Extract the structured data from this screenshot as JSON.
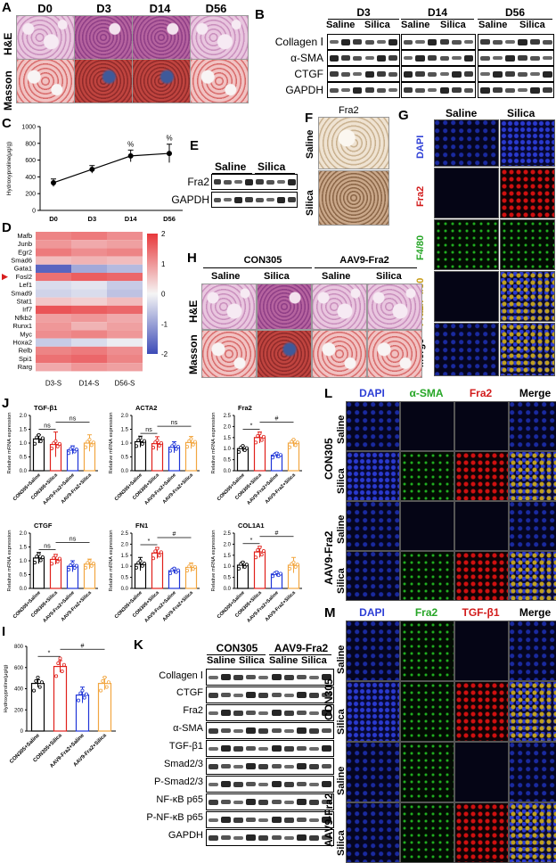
{
  "panels": {
    "A": {
      "label": "A",
      "timepoints": [
        "D0",
        "D3",
        "D14",
        "D56"
      ],
      "rows": [
        "H&E",
        "Masson"
      ]
    },
    "B": {
      "label": "B",
      "groups": [
        "D3",
        "D14",
        "D56"
      ],
      "subgroups": [
        "Saline",
        "Silica"
      ],
      "rows": [
        "Collagen Ⅰ",
        "α-SMA",
        "CTGF",
        "GAPDH"
      ]
    },
    "C": {
      "label": "C"
    },
    "D": {
      "label": "D"
    },
    "E": {
      "label": "E",
      "groups": [
        "Saline",
        "Silica"
      ],
      "rows": [
        "Fra2",
        "GAPDH"
      ]
    },
    "F": {
      "label": "F",
      "title": "Fra2",
      "rows": [
        "Saline",
        "Silica"
      ]
    },
    "G": {
      "label": "G",
      "cols": [
        "Saline",
        "Silica"
      ],
      "rows": [
        "DAPI",
        "Fra2",
        "F4/80",
        "Fra2/F4/80",
        "Merge"
      ]
    },
    "H": {
      "label": "H",
      "groups": [
        "CON305",
        "AAV9-Fra2"
      ],
      "cols": [
        "Saline",
        "Silica",
        "Saline",
        "Silica"
      ],
      "rows": [
        "H&E",
        "Masson"
      ]
    },
    "I": {
      "label": "I"
    },
    "J": {
      "label": "J"
    },
    "K": {
      "label": "K",
      "groups": [
        "CON305",
        "AAV9-Fra2"
      ],
      "cols": [
        "Saline",
        "Silica",
        "Saline",
        "Silica"
      ],
      "rows": [
        "Collagen Ⅰ",
        "CTGF",
        "Fra2",
        "α-SMA",
        "TGF-β1",
        "Smad2/3",
        "P-Smad2/3",
        "NF-κB p65",
        "P-NF-κB p65",
        "GAPDH"
      ]
    },
    "L": {
      "label": "L",
      "cols": [
        "DAPI",
        "α-SMA",
        "Fra2",
        "Merge"
      ],
      "groups": [
        "CON305",
        "AAV9-Fra2"
      ],
      "rows": [
        "Saline",
        "Silica",
        "Saline",
        "Silica"
      ]
    },
    "M": {
      "label": "M",
      "cols": [
        "DAPI",
        "Fra2",
        "TGF-β1",
        "Merge"
      ],
      "groups": [
        "CON305",
        "AAV9-Fra2"
      ],
      "rows": [
        "Saline",
        "Silica",
        "Saline",
        "Silica"
      ]
    }
  },
  "chart_data": [
    {
      "id": "C",
      "type": "line",
      "ylabel": "Hydroxyproline(μg/g)",
      "categories": [
        "D0",
        "D3",
        "D14",
        "D56"
      ],
      "values": [
        330,
        490,
        650,
        680
      ],
      "errors": [
        45,
        45,
        70,
        110
      ],
      "ylim": [
        0,
        1000
      ],
      "yticks": [
        0,
        200,
        400,
        600,
        800,
        1000
      ],
      "annotations": [
        "%",
        "%"
      ]
    },
    {
      "id": "D",
      "type": "heatmap",
      "columns": [
        "D3-S",
        "D14-S",
        "D56-S"
      ],
      "rows": [
        "Mafb",
        "Junb",
        "Egr2",
        "Smad6",
        "Gata1",
        "Fosl2",
        "Lef1",
        "Smad9",
        "Stat1",
        "Irf7",
        "Nfkb2",
        "Runx1",
        "Myc",
        "Hoxa2",
        "Relb",
        "Spi1",
        "Rarg"
      ],
      "highlight": "Fosl2",
      "values": [
        [
          1.2,
          1.3,
          1.1
        ],
        [
          1.0,
          0.8,
          0.9
        ],
        [
          1.3,
          1.1,
          1.2
        ],
        [
          0.6,
          0.7,
          0.6
        ],
        [
          -1.7,
          -0.9,
          -0.7
        ],
        [
          1.4,
          1.6,
          1.5
        ],
        [
          -0.3,
          -0.2,
          -0.5
        ],
        [
          -0.4,
          -0.3,
          -0.6
        ],
        [
          0.5,
          0.4,
          0.6
        ],
        [
          1.7,
          1.6,
          1.5
        ],
        [
          0.9,
          1.0,
          0.8
        ],
        [
          1.0,
          0.7,
          0.9
        ],
        [
          1.1,
          1.2,
          1.0
        ],
        [
          -0.5,
          -0.3,
          -0.1
        ],
        [
          1.2,
          1.3,
          1.1
        ],
        [
          1.4,
          1.5,
          1.2
        ],
        [
          0.8,
          1.0,
          0.9
        ]
      ],
      "scale": [
        -2,
        2
      ],
      "scale_ticks": [
        "2",
        "1",
        "0",
        "-1",
        "-2"
      ]
    },
    {
      "id": "I",
      "type": "bar",
      "ylabel": "Hydroxyproline(μg/g)",
      "categories": [
        "CON305+Saline",
        "CON305+Silica",
        "AAV9-Fra2+Saline",
        "AAV9-Fra2+Silica"
      ],
      "values": [
        450,
        610,
        340,
        450
      ],
      "errors": [
        35,
        55,
        75,
        60
      ],
      "ylim": [
        0,
        800
      ],
      "yticks": [
        0,
        200,
        400,
        600,
        800
      ],
      "sig": [
        "*",
        "#"
      ]
    },
    {
      "id": "J-TGFb1",
      "type": "bar",
      "title": "TGF-β1",
      "ylabel": "Relative mRNA expression",
      "categories": [
        "CON305+Saline",
        "CON305+Silica",
        "AAV9-Fra2+Saline",
        "AAV9-Fra2+Silica"
      ],
      "values": [
        1.15,
        0.95,
        0.75,
        1.0
      ],
      "errors": [
        0.15,
        0.45,
        0.15,
        0.3
      ],
      "ylim": [
        0,
        2.0
      ],
      "yticks": [
        "0.0",
        "0.5",
        "1.0",
        "1.5",
        "2.0"
      ],
      "sig": [
        "ns",
        "ns"
      ]
    },
    {
      "id": "J-ACTA2",
      "type": "bar",
      "title": "ACTA2",
      "ylabel": "Relative mRNA expression",
      "categories": [
        "CON305+Saline",
        "CON305+Silica",
        "AAV9-Fra2+Saline",
        "AAV9-Fra2+Silica"
      ],
      "values": [
        1.05,
        0.98,
        0.85,
        1.02
      ],
      "errors": [
        0.2,
        0.25,
        0.2,
        0.22
      ],
      "ylim": [
        0,
        2.0
      ],
      "yticks": [
        "0.0",
        "0.5",
        "1.0",
        "1.5",
        "2.0"
      ],
      "sig": [
        "ns",
        "ns"
      ]
    },
    {
      "id": "J-Fra2",
      "type": "bar",
      "title": "Fra2",
      "ylabel": "Relative mRNA expression",
      "categories": [
        "CON305+Saline",
        "CON305+Silica",
        "AAV9-Fra2+Saline",
        "AAV9-Fra2+Silica"
      ],
      "values": [
        1.0,
        1.5,
        0.7,
        1.25
      ],
      "errors": [
        0.12,
        0.25,
        0.12,
        0.15
      ],
      "ylim": [
        0,
        2.5
      ],
      "yticks": [
        "0.0",
        "0.5",
        "1.0",
        "1.5",
        "2.0",
        "2.5"
      ],
      "sig": [
        "*",
        "#"
      ]
    },
    {
      "id": "J-CTGF",
      "type": "bar",
      "title": "CTGF",
      "ylabel": "Relative mRNA expression",
      "categories": [
        "CON305+Saline",
        "CON305+Silica",
        "AAV9-Fra2+Saline",
        "AAV9-Fra2+Silica"
      ],
      "values": [
        1.1,
        1.05,
        0.8,
        0.88
      ],
      "errors": [
        0.2,
        0.18,
        0.2,
        0.18
      ],
      "ylim": [
        0,
        2.0
      ],
      "yticks": [
        "0.0",
        "0.5",
        "1.0",
        "1.5",
        "2.0"
      ],
      "sig": [
        "ns",
        "ns"
      ]
    },
    {
      "id": "J-FN1",
      "type": "bar",
      "title": "FN1",
      "ylabel": "Relative mRNA expression",
      "categories": [
        "CON305+Saline",
        "CON305+Silica",
        "AAV9-Fra2+Saline",
        "AAV9-Fra2+Silica"
      ],
      "values": [
        1.1,
        1.6,
        0.8,
        0.95
      ],
      "errors": [
        0.3,
        0.25,
        0.12,
        0.2
      ],
      "ylim": [
        0,
        2.5
      ],
      "yticks": [
        "0.0",
        "0.5",
        "1.0",
        "1.5",
        "2.0",
        "2.5"
      ],
      "sig": [
        "*",
        "#"
      ]
    },
    {
      "id": "J-COL1A1",
      "type": "bar",
      "title": "COL1A1",
      "ylabel": "Relative mRNA expression",
      "categories": [
        "CON305+Saline",
        "CON305+Silica",
        "AAV9-Fra2+Saline",
        "AAV9-Fra2+Silica"
      ],
      "values": [
        1.05,
        1.65,
        0.65,
        1.05
      ],
      "errors": [
        0.15,
        0.25,
        0.1,
        0.35
      ],
      "ylim": [
        0,
        2.5
      ],
      "yticks": [
        "0.0",
        "0.5",
        "1.0",
        "1.5",
        "2.0",
        "2.5"
      ],
      "sig": [
        "*",
        "#"
      ]
    }
  ],
  "colors": {
    "bar1": "#000000",
    "bar2": "#e0201a",
    "bar3": "#1f35d8",
    "bar4": "#f2a640",
    "hot": "#e8383b",
    "cold": "#3d4bb7"
  }
}
